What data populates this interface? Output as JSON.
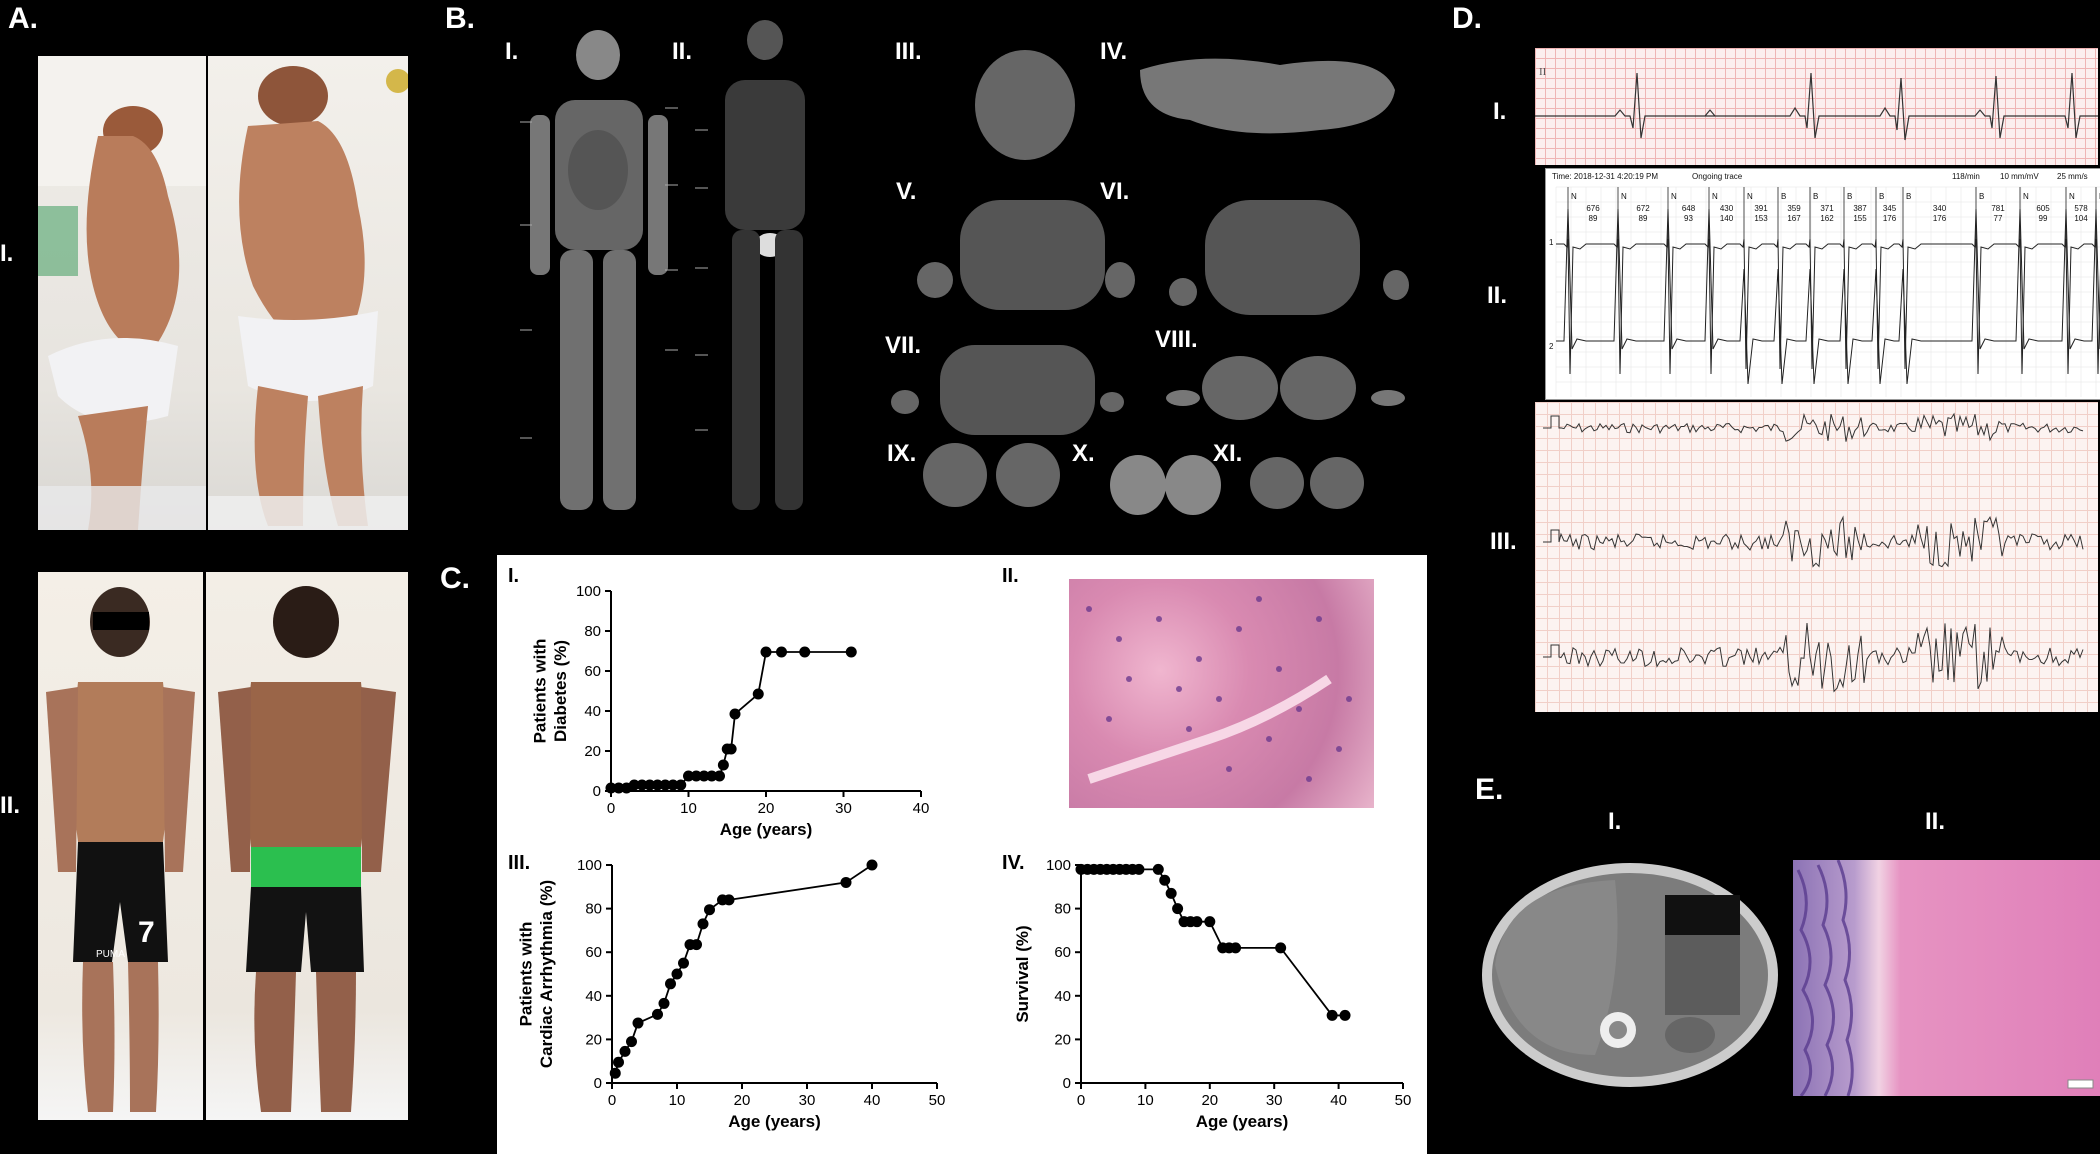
{
  "panels": {
    "A": {
      "label": "A.",
      "rows": [
        "I.",
        "II."
      ]
    },
    "B": {
      "label": "B.",
      "views": [
        "I.",
        "II.",
        "III.",
        "IV.",
        "V.",
        "VI.",
        "VII.",
        "VIII.",
        "IX.",
        "X.",
        "XI."
      ]
    },
    "C": {
      "label": "C.",
      "sub": [
        "I.",
        "II.",
        "III.",
        "IV."
      ]
    },
    "D": {
      "label": "D.",
      "rows": [
        "I.",
        "II.",
        "III."
      ]
    },
    "E": {
      "label": "E.",
      "sub": [
        "I.",
        "II."
      ]
    }
  },
  "photo_text": {
    "jersey_number": "7",
    "jersey_brand": "PUMA"
  },
  "ecg": {
    "lead_label": "II",
    "trace_header": {
      "time": "Time: 2018-12-31 4:20:19 PM",
      "status": "Ongoing trace",
      "rate": "118/min",
      "gain": "10 mm/mV",
      "speed": "25 mm/s"
    },
    "beat_labels": [
      "N",
      "N",
      "N",
      "N",
      "N",
      "B",
      "B",
      "B",
      "B",
      "B",
      "B",
      "N",
      "N",
      "N"
    ],
    "intervals": [
      "676\n89",
      "672\n89",
      "648\n93",
      "430\n140",
      "391\n153",
      "359\n167",
      "371\n162",
      "387\n155",
      "345\n176",
      "340\n176",
      "781\n77",
      "605\n99",
      "578\n104"
    ],
    "channel_labels": [
      "1",
      "2"
    ]
  },
  "chart_data": [
    {
      "type": "line",
      "title": "",
      "xlabel": "Age (years)",
      "ylabel": "Patients with Diabetes (%)",
      "xlim": [
        0,
        40
      ],
      "ylim": [
        0,
        100
      ],
      "xticks": [
        0,
        10,
        20,
        30,
        40
      ],
      "yticks": [
        0,
        20,
        40,
        60,
        80,
        100
      ],
      "x": [
        0,
        1,
        2,
        3,
        4,
        5,
        6,
        7,
        8,
        9,
        10,
        11,
        12,
        13,
        14,
        14.5,
        15,
        15.5,
        16,
        19,
        20,
        22,
        25,
        31
      ],
      "y": [
        1.5,
        1.5,
        1.5,
        3,
        3,
        3,
        3,
        3,
        3,
        3,
        7.5,
        7.5,
        7.5,
        7.5,
        7.5,
        13,
        21,
        21,
        38.5,
        48.5,
        69.5,
        69.5,
        69.5,
        69.5
      ]
    },
    {
      "type": "line",
      "title": "",
      "xlabel": "Age (years)",
      "ylabel": "Patients with Cardiac Arrhythmia (%)",
      "xlim": [
        0,
        50
      ],
      "ylim": [
        0,
        100
      ],
      "xticks": [
        0,
        10,
        20,
        30,
        40,
        50
      ],
      "yticks": [
        0,
        20,
        40,
        60,
        80,
        100
      ],
      "x": [
        0.5,
        1,
        2,
        3,
        4,
        7,
        8,
        9,
        10,
        11,
        12,
        13,
        14,
        15,
        17,
        18,
        36,
        40
      ],
      "y": [
        4.5,
        9.5,
        14.5,
        19,
        27.5,
        31.5,
        36.5,
        45.5,
        50,
        55,
        63.5,
        63.5,
        73,
        79.5,
        84,
        84,
        92,
        100
      ]
    },
    {
      "type": "line",
      "title": "",
      "xlabel": "Age (years)",
      "ylabel": "Survival (%)",
      "xlim": [
        0,
        50
      ],
      "ylim": [
        0,
        100
      ],
      "xticks": [
        0,
        10,
        20,
        30,
        40,
        50
      ],
      "yticks": [
        0,
        20,
        40,
        60,
        80,
        100
      ],
      "x": [
        0,
        1,
        2,
        3,
        4,
        5,
        6,
        7,
        8,
        9,
        12,
        13,
        14,
        15,
        16,
        17,
        18,
        20,
        22,
        23,
        24,
        31,
        39,
        41
      ],
      "y": [
        98,
        98,
        98,
        98,
        98,
        98,
        98,
        98,
        98,
        98,
        98,
        93,
        87,
        80,
        74,
        74,
        74,
        74,
        62,
        62,
        62,
        62,
        31,
        31
      ]
    }
  ]
}
